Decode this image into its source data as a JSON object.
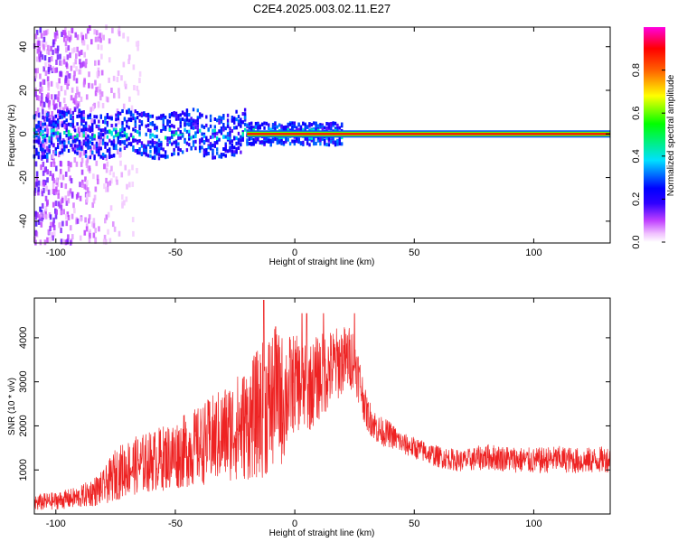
{
  "title": "C2E4.2025.003.02.11.E27",
  "chart_data": [
    {
      "type": "heatmap",
      "xlabel": "Height of straight line (km)",
      "ylabel": "Frequency (Hz)",
      "xlim": [
        -109,
        132
      ],
      "ylim": [
        -50,
        49
      ],
      "xticks": [
        -100,
        -50,
        0,
        50,
        100
      ],
      "yticks": [
        -40,
        -20,
        0,
        20,
        40
      ],
      "colorbar": {
        "label": "Normalized spectral amplitude",
        "range": [
          0,
          1
        ],
        "ticks": [
          "0.0",
          "0.2",
          "0.4",
          "0.6",
          "0.8"
        ],
        "colors": [
          "#ffffff",
          "#e040ff",
          "#5000ff",
          "#0000ff",
          "#00c8ff",
          "#00ff40",
          "#ffff00",
          "#ff8000",
          "#ff0000",
          "#ff00c0"
        ]
      },
      "ridge": {
        "x_start": -20,
        "x_end": 132,
        "frequency": 0,
        "amplitude": 1.0
      }
    },
    {
      "type": "line",
      "xlabel": "Height of straight line (km)",
      "ylabel": "SNR (10 * v/v)",
      "xlim": [
        -109,
        132
      ],
      "ylim": [
        0,
        4900
      ],
      "xticks": [
        -100,
        -50,
        0,
        50,
        100
      ],
      "yticks": [
        1000,
        2000,
        3000,
        4000
      ],
      "color": "#ee2222",
      "series": [
        {
          "x": [
            -109,
            -100,
            -90,
            -80,
            -75,
            -70,
            -60,
            -50,
            -40,
            -30,
            -25,
            -20,
            -15,
            -10,
            -5,
            0,
            5,
            10,
            15,
            20,
            25,
            30,
            35,
            40,
            45,
            50,
            60,
            70,
            80,
            90,
            100,
            110,
            120,
            132
          ],
          "y": [
            250,
            300,
            380,
            600,
            900,
            1050,
            1200,
            1350,
            1550,
            1800,
            1950,
            2050,
            2300,
            2550,
            2600,
            3000,
            2800,
            3100,
            3300,
            3500,
            3550,
            2300,
            1900,
            1800,
            1600,
            1500,
            1300,
            1200,
            1300,
            1250,
            1200,
            1250,
            1200,
            1250
          ],
          "spread": [
            200,
            200,
            250,
            400,
            600,
            650,
            700,
            800,
            900,
            1100,
            1200,
            1300,
            1500,
            1700,
            1500,
            1100,
            1000,
            1000,
            900,
            800,
            700,
            400,
            350,
            300,
            250,
            250,
            250,
            250,
            300,
            300,
            300,
            300,
            300,
            300
          ]
        }
      ],
      "peaks": [
        [
          -13,
          4850
        ],
        [
          -8,
          4250
        ],
        [
          3,
          4550
        ],
        [
          5,
          4550
        ],
        [
          12,
          4550
        ],
        [
          25,
          4550
        ]
      ]
    }
  ]
}
